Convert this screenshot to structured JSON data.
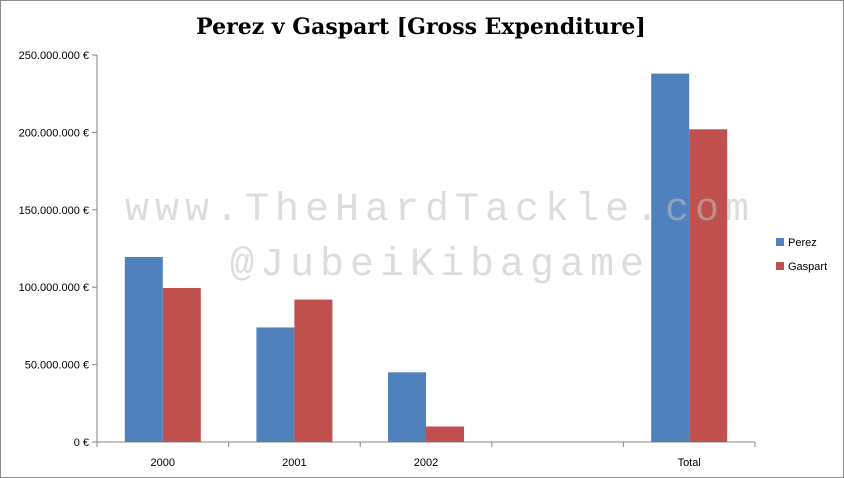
{
  "chart_data": {
    "type": "bar",
    "title": "Perez v Gaspart [Gross Expenditure]",
    "categories": [
      "2000",
      "2001",
      "2002",
      "Total"
    ],
    "series": [
      {
        "name": "Perez",
        "values": [
          119500000,
          74000000,
          45000000,
          238000000
        ],
        "color": "#4f81bd"
      },
      {
        "name": "Gaspart",
        "values": [
          99500000,
          92000000,
          10000000,
          202000000
        ],
        "color": "#c0504d"
      }
    ],
    "y_ticks": [
      "0 €",
      "50.000.000 €",
      "100.000.000 €",
      "150.000.000 €",
      "200.000.000 €",
      "250.000.000 €"
    ],
    "ylim": [
      0,
      250000000
    ],
    "legend_position": "right",
    "grid": false
  },
  "watermark": {
    "line1": "www.TheHardTackle.com",
    "line2": "@JubeiKibagame"
  }
}
